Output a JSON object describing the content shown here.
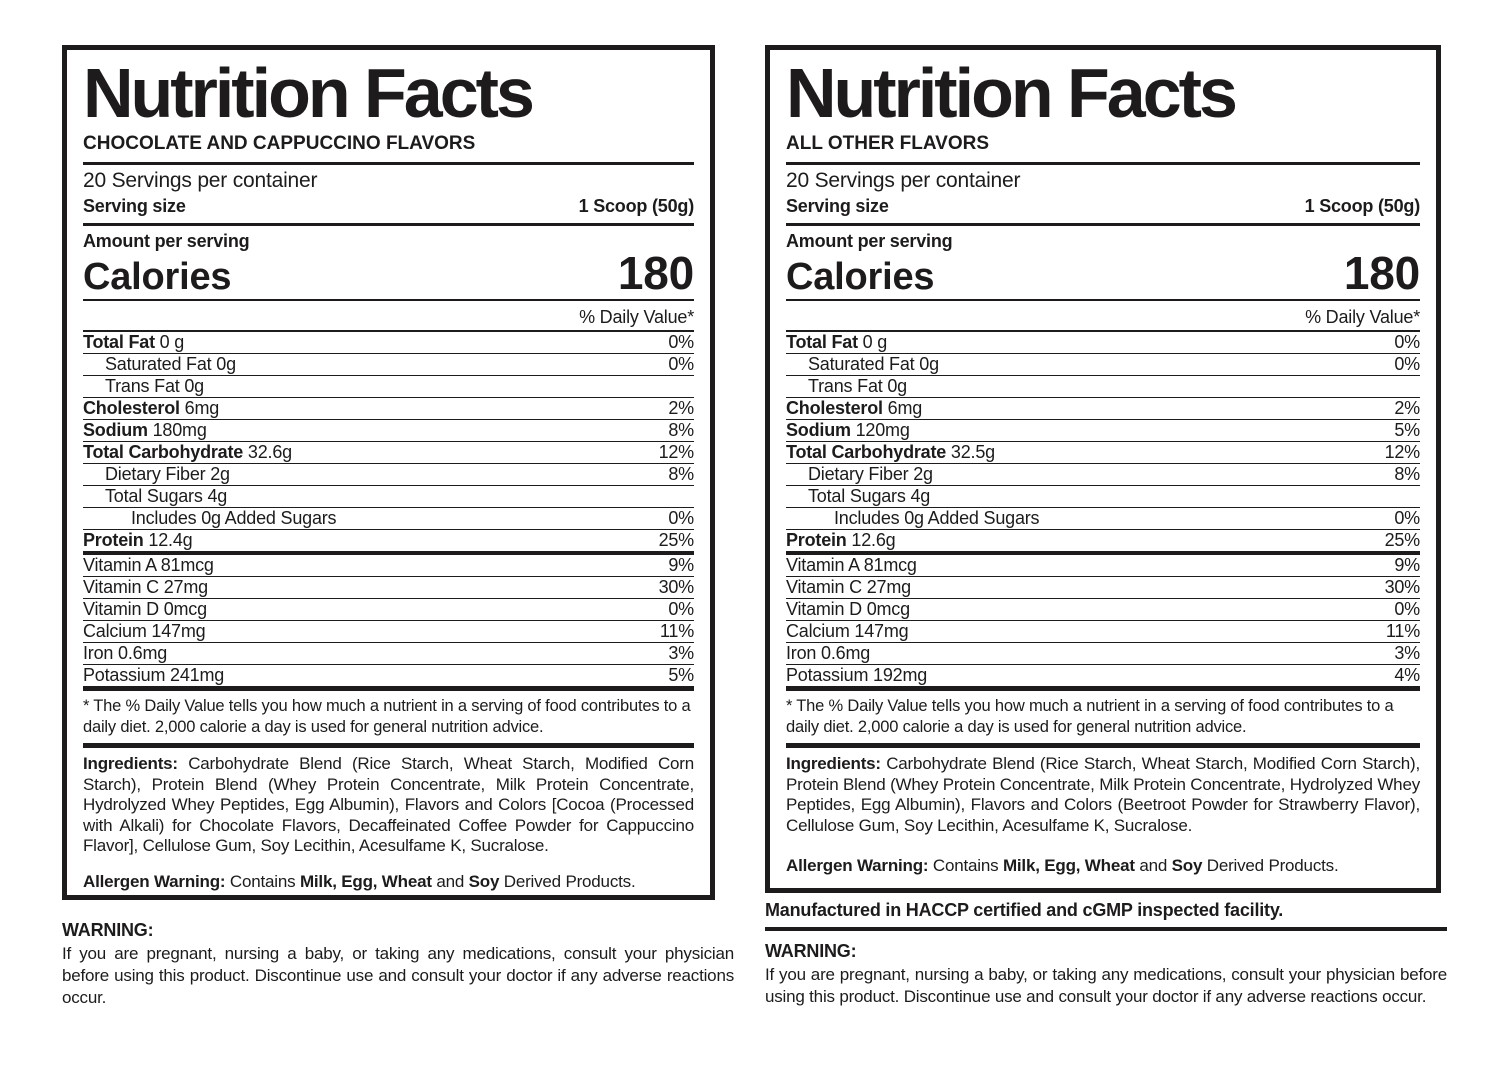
{
  "colors": {
    "ink": "#1e1b1c",
    "background": "#ffffff"
  },
  "left_panel": {
    "title": "Nutrition Facts",
    "flavor": "CHOCOLATE AND CAPPUCCINO FLAVORS",
    "servings": "20 Servings per container",
    "serving_size_label": "Serving size",
    "serving_size_value": "1 Scoop (50g)",
    "amount_per_serving": "Amount per serving",
    "calories_label": "Calories",
    "calories_value": "180",
    "dv_header": "% Daily Value*",
    "rows": [
      {
        "bold": "Total Fat",
        "rest": "0 g",
        "dv": "0%",
        "indent": 0
      },
      {
        "bold": "",
        "rest": "Saturated Fat 0g",
        "dv": "0%",
        "indent": 1
      },
      {
        "bold": "",
        "rest": "Trans Fat 0g",
        "dv": "",
        "indent": 1
      },
      {
        "bold": "Cholesterol",
        "rest": "6mg",
        "dv": "2%",
        "indent": 0
      },
      {
        "bold": "Sodium",
        "rest": "180mg",
        "dv": "8%",
        "indent": 0
      },
      {
        "bold": "Total Carbohydrate",
        "rest": "32.6g",
        "dv": "12%",
        "indent": 0
      },
      {
        "bold": "",
        "rest": "Dietary Fiber 2g",
        "dv": "8%",
        "indent": 1
      },
      {
        "bold": "",
        "rest": "Total Sugars 4g",
        "dv": "",
        "indent": 1
      },
      {
        "bold": "",
        "rest": "Includes 0g Added Sugars",
        "dv": "0%",
        "indent": 2
      },
      {
        "bold": "Protein",
        "rest": "12.4g",
        "dv": "25%",
        "indent": 0,
        "thick": true
      },
      {
        "bold": "",
        "rest": "Vitamin A 81mcg",
        "dv": "9%",
        "indent": 0
      },
      {
        "bold": "",
        "rest": "Vitamin C 27mg",
        "dv": "30%",
        "indent": 0
      },
      {
        "bold": "",
        "rest": "Vitamin D 0mcg",
        "dv": "0%",
        "indent": 0
      },
      {
        "bold": "",
        "rest": "Calcium 147mg",
        "dv": "11%",
        "indent": 0
      },
      {
        "bold": "",
        "rest": "Iron 0.6mg",
        "dv": "3%",
        "indent": 0
      },
      {
        "bold": "",
        "rest": "Potassium 241mg",
        "dv": "5%",
        "indent": 0,
        "last": true
      }
    ],
    "footnote": "* The % Daily Value tells you how much a nutrient in a serving of food contributes to a daily diet. 2,000 calorie a day is used for general nutrition advice.",
    "ingredients_label": "Ingredients:",
    "ingredients_text": "Carbohydrate Blend (Rice Starch, Wheat Starch, Modified Corn Starch), Protein Blend (Whey Protein Concentrate, Milk Protein Concentrate, Hydrolyzed Whey Peptides, Egg Albumin), Flavors and Colors [Cocoa (Processed with Alkali) for Chocolate Flavors, Decaffeinated Coffee Powder for Cappuccino Flavor], Cellulose Gum, Soy Lecithin, Acesulfame K, Sucralose.",
    "allergen": {
      "label": "Allergen Warning:",
      "pre": "Contains",
      "bold1": "Milk, Egg, Wheat",
      "mid": "and",
      "bold2": "Soy",
      "post": "Derived Products."
    }
  },
  "right_panel": {
    "title": "Nutrition Facts",
    "flavor": "ALL OTHER FLAVORS",
    "servings": "20 Servings per container",
    "serving_size_label": "Serving size",
    "serving_size_value": "1 Scoop (50g)",
    "amount_per_serving": "Amount per serving",
    "calories_label": "Calories",
    "calories_value": "180",
    "dv_header": "% Daily Value*",
    "rows": [
      {
        "bold": "Total Fat",
        "rest": "0 g",
        "dv": "0%",
        "indent": 0
      },
      {
        "bold": "",
        "rest": "Saturated Fat 0g",
        "dv": "0%",
        "indent": 1
      },
      {
        "bold": "",
        "rest": "Trans Fat 0g",
        "dv": "",
        "indent": 1
      },
      {
        "bold": "Cholesterol",
        "rest": "6mg",
        "dv": "2%",
        "indent": 0
      },
      {
        "bold": "Sodium",
        "rest": "120mg",
        "dv": "5%",
        "indent": 0
      },
      {
        "bold": "Total Carbohydrate",
        "rest": "32.5g",
        "dv": "12%",
        "indent": 0
      },
      {
        "bold": "",
        "rest": "Dietary Fiber 2g",
        "dv": "8%",
        "indent": 1
      },
      {
        "bold": "",
        "rest": "Total Sugars 4g",
        "dv": "",
        "indent": 1
      },
      {
        "bold": "",
        "rest": "Includes 0g Added Sugars",
        "dv": "0%",
        "indent": 2
      },
      {
        "bold": "Protein",
        "rest": "12.6g",
        "dv": "25%",
        "indent": 0,
        "thick": true
      },
      {
        "bold": "",
        "rest": "Vitamin A 81mcg",
        "dv": "9%",
        "indent": 0
      },
      {
        "bold": "",
        "rest": "Vitamin C 27mg",
        "dv": "30%",
        "indent": 0
      },
      {
        "bold": "",
        "rest": "Vitamin D 0mcg",
        "dv": "0%",
        "indent": 0
      },
      {
        "bold": "",
        "rest": "Calcium 147mg",
        "dv": "11%",
        "indent": 0
      },
      {
        "bold": "",
        "rest": "Iron 0.6mg",
        "dv": "3%",
        "indent": 0
      },
      {
        "bold": "",
        "rest": "Potassium 192mg",
        "dv": "4%",
        "indent": 0,
        "last": true
      }
    ],
    "footnote": "* The % Daily Value tells you how much a nutrient in a serving of food contributes to a daily diet. 2,000 calorie a day is used for general nutrition advice.",
    "ingredients_label": "Ingredients:",
    "ingredients_text": "Carbohydrate Blend (Rice Starch, Wheat Starch, Modified Corn Starch), Protein Blend (Whey Protein Concentrate, Milk Protein Concentrate, Hydrolyzed Whey Peptides, Egg Albumin), Flavors and Colors (Beetroot Powder for Strawberry Flavor), Cellulose Gum, Soy Lecithin, Acesulfame K, Sucralose.",
    "allergen": {
      "label": "Allergen Warning:",
      "pre": "Contains",
      "bold1": "Milk, Egg, Wheat",
      "mid": "and",
      "bold2": "Soy",
      "post": "Derived Products."
    }
  },
  "left_footer": {
    "warning_title": "WARNING:",
    "warning_text": "If you are pregnant, nursing a baby, or taking any medications, consult your physician before using this product. Discontinue use and consult your doctor if any adverse reactions occur."
  },
  "right_footer": {
    "manufactured": "Manufactured in HACCP certified and cGMP inspected facility.",
    "warning_title": "WARNING:",
    "warning_text": "If you are pregnant, nursing a baby, or taking any medications, consult your physician before using this product. Discontinue use and consult your doctor if any adverse reactions occur."
  }
}
